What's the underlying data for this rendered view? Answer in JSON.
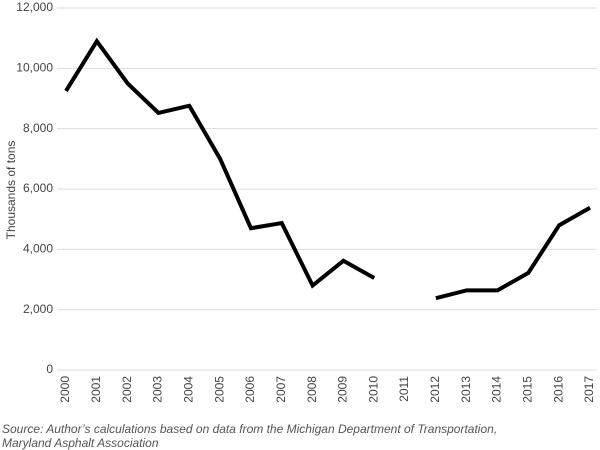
{
  "chart_data": {
    "type": "line",
    "y_label": "Thousands of tons",
    "source": [
      "Source: Author’s calculations based on data from the Michigan Department of Transportation,",
      "Maryland Asphalt Association"
    ],
    "categories": [
      "2000",
      "2001",
      "2002",
      "2003",
      "2004",
      "2005",
      "2006",
      "2007",
      "2008",
      "2009",
      "2010",
      "2011",
      "2012",
      "2013",
      "2014",
      "2015",
      "2016",
      "2017"
    ],
    "values": [
      9250,
      10900,
      9500,
      8520,
      8760,
      7000,
      4700,
      4870,
      2800,
      3620,
      3050,
      null,
      2380,
      2640,
      2640,
      3220,
      4800,
      5380
    ],
    "color": "#000000",
    "ylim": [
      0,
      12000
    ],
    "yticks": [
      0,
      {
        "value": 2000,
        "label": "2,000"
      },
      {
        "value": 4000,
        "label": "4,000"
      },
      {
        "value": 6000,
        "label": "6,000"
      },
      {
        "value": 8000,
        "label": "8,000"
      },
      {
        "value": 10000,
        "label": "10,000"
      },
      {
        "value": 12000,
        "label": "12,000"
      }
    ],
    "grid": true
  }
}
